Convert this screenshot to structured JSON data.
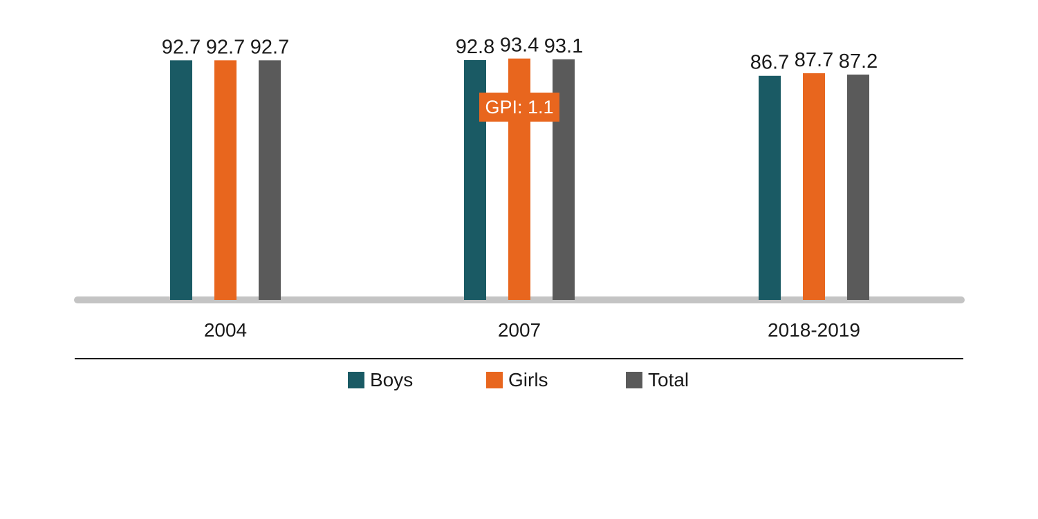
{
  "chart_data": {
    "type": "bar",
    "categories": [
      "2004",
      "2007",
      "2018-2019"
    ],
    "series": [
      {
        "name": "Boys",
        "color": "#1a5a64",
        "values": [
          92.7,
          92.8,
          86.7
        ],
        "labels": [
          "92.7",
          "92.8",
          "86.7"
        ]
      },
      {
        "name": "Girls",
        "color": "#e8661e",
        "values": [
          92.7,
          93.4,
          87.7
        ],
        "labels": [
          "92.7",
          "93.4",
          "87.7"
        ]
      },
      {
        "name": "Total",
        "color": "#5a5a5a",
        "values": [
          92.7,
          93.1,
          87.2
        ],
        "labels": [
          "92.7",
          "93.1",
          "87.2"
        ]
      }
    ],
    "ylim": [
      0,
      100
    ],
    "grid": false,
    "legend": "bottom",
    "axis_color": "#c4c4c4",
    "annotations": [
      {
        "category": "2007",
        "text": "GPI: 1.1",
        "color": "#e8661e",
        "text_color": "#ffffff"
      }
    ]
  }
}
